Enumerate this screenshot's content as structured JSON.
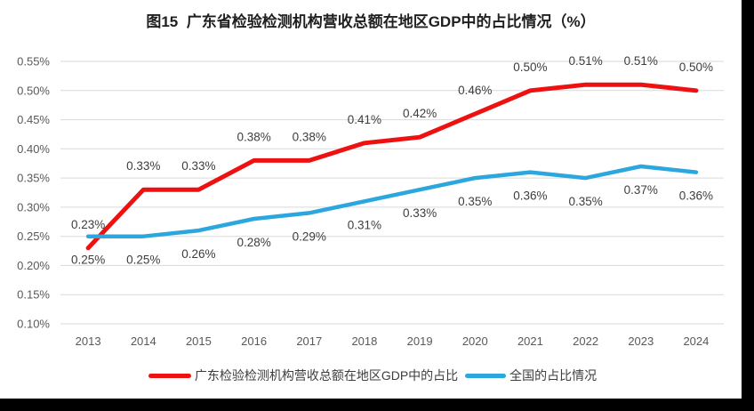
{
  "chart_data": {
    "type": "line",
    "title": "图15  广东省检验检测机构营收总额在地区GDP中的占比情况（%）",
    "categories": [
      "2013",
      "2014",
      "2015",
      "2016",
      "2017",
      "2018",
      "2019",
      "2020",
      "2021",
      "2022",
      "2023",
      "2024"
    ],
    "series": [
      {
        "name": "广东检验检测机构营收总额在地区GDP中的占比",
        "color": "#ee1111",
        "values": [
          0.23,
          0.33,
          0.33,
          0.38,
          0.38,
          0.41,
          0.42,
          0.46,
          0.5,
          0.51,
          0.51,
          0.5
        ],
        "label_position": "above"
      },
      {
        "name": "全国的占比情况",
        "color": "#2ba7de",
        "values": [
          0.25,
          0.25,
          0.26,
          0.28,
          0.29,
          0.31,
          0.33,
          0.35,
          0.36,
          0.35,
          0.37,
          0.36
        ],
        "label_position": "below"
      }
    ],
    "ylim": [
      0.1,
      0.55
    ],
    "ytick_step": 0.05,
    "ytick_labels": [
      "0.10%",
      "0.15%",
      "0.20%",
      "0.25%",
      "0.30%",
      "0.35%",
      "0.40%",
      "0.45%",
      "0.50%",
      "0.55%"
    ],
    "xlabel": "",
    "ylabel": "",
    "grid": true,
    "grid_color": "#d9d9d9",
    "axis_label_color": "#595959",
    "data_label_color": "#3d3d3d",
    "legend_position": "bottom"
  }
}
